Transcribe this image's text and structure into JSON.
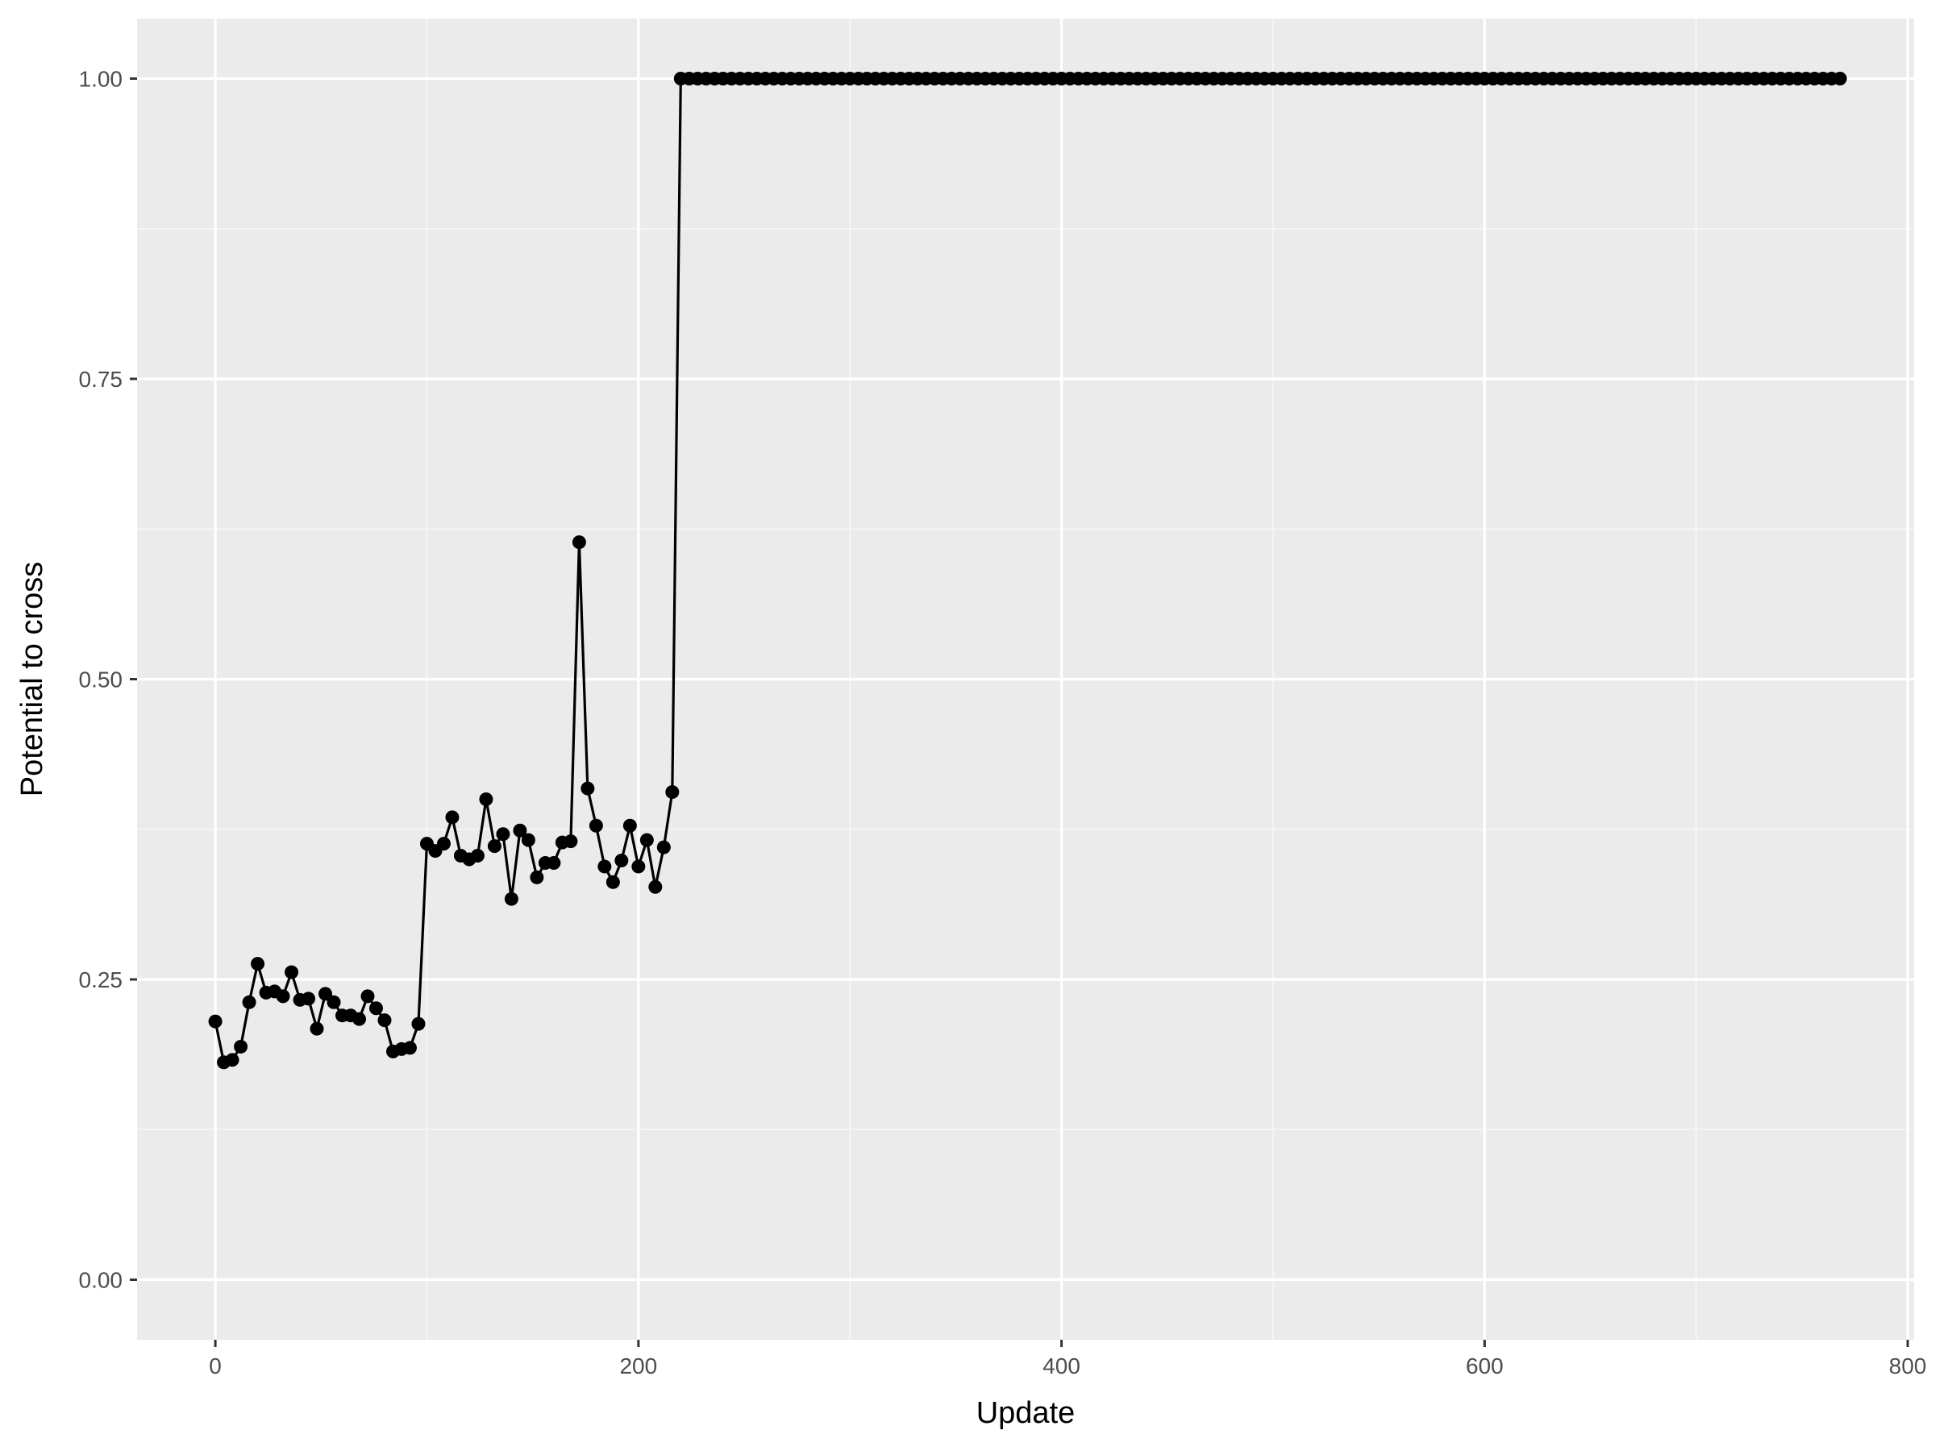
{
  "chart_data": {
    "type": "line",
    "title": "",
    "xlabel": "Update",
    "ylabel": "Potential to cross",
    "xlim": [
      -37,
      803
    ],
    "ylim": [
      -0.05,
      1.05
    ],
    "x_ticks": [
      0,
      200,
      400,
      600,
      800
    ],
    "x_tick_labels": [
      "0",
      "200",
      "400",
      "600",
      "800"
    ],
    "y_ticks": [
      0,
      0.25,
      0.5,
      0.75,
      1.0
    ],
    "y_tick_labels": [
      "0.00",
      "0.25",
      "0.50",
      "0.75",
      "1.00"
    ],
    "grid": true,
    "legend": "none",
    "colors": {
      "panel_background": "#ebebeb",
      "grid_major": "#ffffff",
      "grid_minor": "#f7f7f7",
      "series": "#000000",
      "tick_label": "#4d4d4d",
      "tick_mark": "#333333",
      "axis_title": "#000000"
    },
    "series": [
      {
        "x": [
          0,
          4,
          8,
          12,
          16,
          20,
          24,
          28,
          32,
          36,
          40,
          44,
          48,
          52,
          56,
          60,
          64,
          68,
          72,
          76,
          80,
          84,
          88,
          92,
          96,
          100,
          104,
          108,
          112,
          116,
          120,
          124,
          128,
          132,
          136,
          140,
          144,
          148,
          152,
          156,
          160,
          164,
          168,
          172,
          176,
          180,
          184,
          188,
          192,
          196,
          200,
          204,
          208,
          212,
          216,
          220
        ],
        "y": [
          0.215,
          0.181,
          0.183,
          0.194,
          0.231,
          0.263,
          0.239,
          0.24,
          0.236,
          0.256,
          0.233,
          0.234,
          0.209,
          0.238,
          0.231,
          0.22,
          0.22,
          0.217,
          0.236,
          0.226,
          0.216,
          0.19,
          0.192,
          0.193,
          0.213,
          0.363,
          0.357,
          0.363,
          0.385,
          0.353,
          0.35,
          0.353,
          0.4,
          0.361,
          0.371,
          0.317,
          0.374,
          0.366,
          0.335,
          0.347,
          0.347,
          0.364,
          0.365,
          0.614,
          0.409,
          0.378,
          0.344,
          0.331,
          0.349,
          0.378,
          0.344,
          0.366,
          0.327,
          0.36,
          0.406,
          1.0
        ],
        "constant_segment": {
          "x_start": 220,
          "x_end": 768,
          "x_step": 4,
          "y": 1.0
        }
      }
    ]
  }
}
